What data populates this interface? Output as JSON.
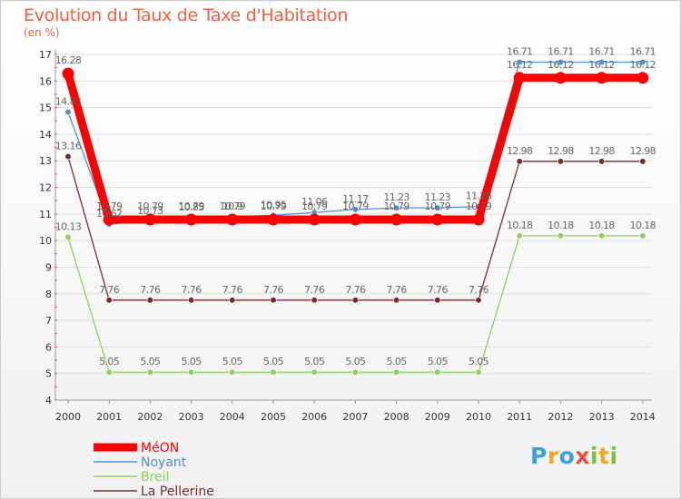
{
  "title": "Evolution du Taux de Taxe d'Habitation",
  "subtitle": "(en %)",
  "logo": {
    "text": "Proxiti",
    "letters": [
      "P",
      "r",
      "o",
      "x",
      "i",
      "t",
      "i"
    ],
    "colors": [
      "#3f9fd8",
      "#f5a623",
      "#3f9fd8",
      "#e84c3d",
      "#7bc143",
      "#f5a623",
      "#7bc143"
    ]
  },
  "chart_data": {
    "type": "line",
    "title": "Evolution du Taux de Taxe d'Habitation",
    "ylabel": "(en %)",
    "xlabel": "",
    "x": [
      "2000",
      "2001",
      "2002",
      "2003",
      "2004",
      "2005",
      "2006",
      "2007",
      "2008",
      "2009",
      "2010",
      "2011",
      "2012",
      "2013",
      "2014"
    ],
    "ylim": [
      4,
      17
    ],
    "yticks": [
      "4",
      "5",
      "6",
      "7",
      "8",
      "9",
      "10",
      "11",
      "12",
      "13",
      "14",
      "15",
      "16",
      "17"
    ],
    "grid": "horizontal",
    "legend_position": "bottom-left",
    "series": [
      {
        "name": "MéON",
        "color": "#ff0000",
        "style": "thick",
        "values": [
          16.28,
          10.79,
          10.79,
          10.79,
          10.79,
          10.79,
          10.79,
          10.79,
          10.79,
          10.79,
          10.79,
          16.12,
          16.12,
          16.12,
          16.12
        ],
        "labels": [
          "16.28",
          "10.79",
          "10.79",
          "10.79",
          "10.79",
          "10.79",
          "10.79",
          "10.79",
          "10.79",
          "10.79",
          "10.79",
          "16.12",
          "16.12",
          "16.12",
          "16.12"
        ]
      },
      {
        "name": "Noyant",
        "color": "#4f90cd",
        "style": "thin",
        "values": [
          14.83,
          10.62,
          10.73,
          10.85,
          10.9,
          10.95,
          11.06,
          11.17,
          11.23,
          11.23,
          11.28,
          16.71,
          16.71,
          16.71,
          16.71
        ],
        "labels": [
          "14.83",
          "10.62",
          "10.73",
          "10.85",
          "10.9",
          "10.95",
          "11.06",
          "11.17",
          "11.23",
          "11.23",
          "11.28",
          "16.71",
          "16.71",
          "16.71",
          "16.71"
        ]
      },
      {
        "name": "Breil",
        "color": "#8fd15a",
        "style": "thin",
        "values": [
          10.13,
          5.05,
          5.05,
          5.05,
          5.05,
          5.05,
          5.05,
          5.05,
          5.05,
          5.05,
          5.05,
          10.18,
          10.18,
          10.18,
          10.18
        ],
        "labels": [
          "10.13",
          "5.05",
          "5.05",
          "5.05",
          "5.05",
          "5.05",
          "5.05",
          "5.05",
          "5.05",
          "5.05",
          "5.05",
          "10.18",
          "10.18",
          "10.18",
          "10.18"
        ]
      },
      {
        "name": "La Pellerine",
        "color": "#7a2c2c",
        "style": "thin",
        "values": [
          13.16,
          7.76,
          7.76,
          7.76,
          7.76,
          7.76,
          7.76,
          7.76,
          7.76,
          7.76,
          7.76,
          12.98,
          12.98,
          12.98,
          12.98
        ],
        "labels": [
          "13.16",
          "7.76",
          "7.76",
          "7.76",
          "7.76",
          "7.76",
          "7.76",
          "7.76",
          "7.76",
          "7.76",
          "7.76",
          "12.98",
          "12.98",
          "12.98",
          "12.98"
        ]
      }
    ]
  }
}
